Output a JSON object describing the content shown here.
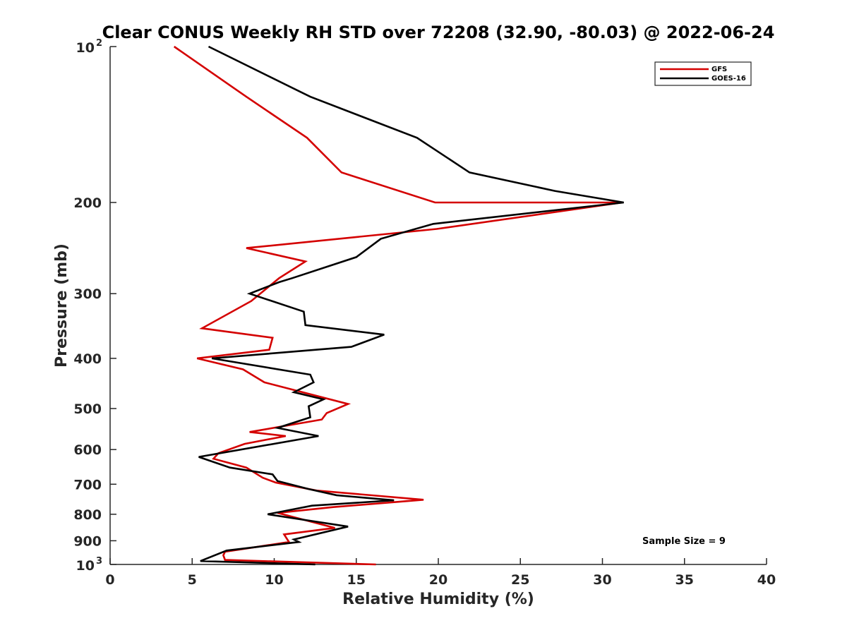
{
  "chart_data": {
    "type": "line",
    "title": "Clear CONUS Weekly RH STD over 72208 (32.90, -80.03) @ 2022-06-24",
    "xlabel": "Relative Humidity (%)",
    "ylabel": "Pressure (mb)",
    "xlim": [
      0,
      40
    ],
    "ylim": [
      100,
      1000
    ],
    "y_scale": "log",
    "y_reversed": true,
    "grid": false,
    "legend_position": "top-right",
    "x_ticks": [
      "0",
      "5",
      "10",
      "15",
      "20",
      "25",
      "30",
      "35",
      "40"
    ],
    "y_ticks": [
      {
        "base": "10",
        "sup": "2"
      },
      {
        "base": "200",
        "sup": ""
      },
      {
        "base": "300",
        "sup": ""
      },
      {
        "base": "400",
        "sup": ""
      },
      {
        "base": "500",
        "sup": ""
      },
      {
        "base": "600",
        "sup": ""
      },
      {
        "base": "700",
        "sup": ""
      },
      {
        "base": "800",
        "sup": ""
      },
      {
        "base": "900",
        "sup": ""
      },
      {
        "base": "10",
        "sup": "3"
      }
    ],
    "annotation": "Sample Size = 9",
    "series": [
      {
        "name": "GFS",
        "color": "#d40000",
        "points": [
          [
            3.9,
            100
          ],
          [
            8.3,
            125
          ],
          [
            12.0,
            150
          ],
          [
            14.1,
            175
          ],
          [
            19.8,
            200
          ],
          [
            31.2,
            200
          ],
          [
            19.9,
            225
          ],
          [
            8.3,
            245
          ],
          [
            11.9,
            260
          ],
          [
            10.3,
            280
          ],
          [
            8.6,
            310
          ],
          [
            5.6,
            350
          ],
          [
            9.9,
            365
          ],
          [
            9.7,
            385
          ],
          [
            5.3,
            400
          ],
          [
            8.1,
            420
          ],
          [
            9.4,
            445
          ],
          [
            14.5,
            490
          ],
          [
            13.2,
            510
          ],
          [
            12.9,
            525
          ],
          [
            8.5,
            555
          ],
          [
            10.7,
            565
          ],
          [
            8.2,
            585
          ],
          [
            6.6,
            610
          ],
          [
            6.3,
            625
          ],
          [
            8.3,
            650
          ],
          [
            9.3,
            680
          ],
          [
            10.1,
            695
          ],
          [
            12.6,
            720
          ],
          [
            19.1,
            750
          ],
          [
            13.6,
            775
          ],
          [
            10.2,
            795
          ],
          [
            13.7,
            850
          ],
          [
            10.6,
            875
          ],
          [
            10.9,
            905
          ],
          [
            7.0,
            945
          ],
          [
            6.9,
            960
          ],
          [
            7.0,
            980
          ],
          [
            16.2,
            1000
          ]
        ]
      },
      {
        "name": "GOES-16",
        "color": "#000000",
        "points": [
          [
            6.0,
            100
          ],
          [
            12.2,
            125
          ],
          [
            18.7,
            150
          ],
          [
            21.9,
            175
          ],
          [
            27.1,
            190
          ],
          [
            31.3,
            200
          ],
          [
            19.7,
            220
          ],
          [
            16.5,
            235
          ],
          [
            15.0,
            255
          ],
          [
            11.1,
            280
          ],
          [
            10.3,
            285
          ],
          [
            8.5,
            300
          ],
          [
            11.8,
            325
          ],
          [
            11.9,
            345
          ],
          [
            16.7,
            360
          ],
          [
            14.7,
            380
          ],
          [
            6.2,
            400
          ],
          [
            12.2,
            430
          ],
          [
            12.4,
            445
          ],
          [
            11.2,
            465
          ],
          [
            13.0,
            480
          ],
          [
            12.1,
            495
          ],
          [
            12.2,
            520
          ],
          [
            10.2,
            545
          ],
          [
            12.7,
            565
          ],
          [
            5.4,
            620
          ],
          [
            7.3,
            650
          ],
          [
            9.9,
            670
          ],
          [
            10.2,
            690
          ],
          [
            12.1,
            715
          ],
          [
            13.8,
            735
          ],
          [
            17.3,
            752
          ],
          [
            12.3,
            770
          ],
          [
            10.5,
            790
          ],
          [
            9.6,
            800
          ],
          [
            14.5,
            845
          ],
          [
            11.2,
            895
          ],
          [
            11.5,
            905
          ],
          [
            7.1,
            940
          ],
          [
            5.5,
            985
          ],
          [
            12.5,
            1000
          ]
        ]
      }
    ]
  }
}
